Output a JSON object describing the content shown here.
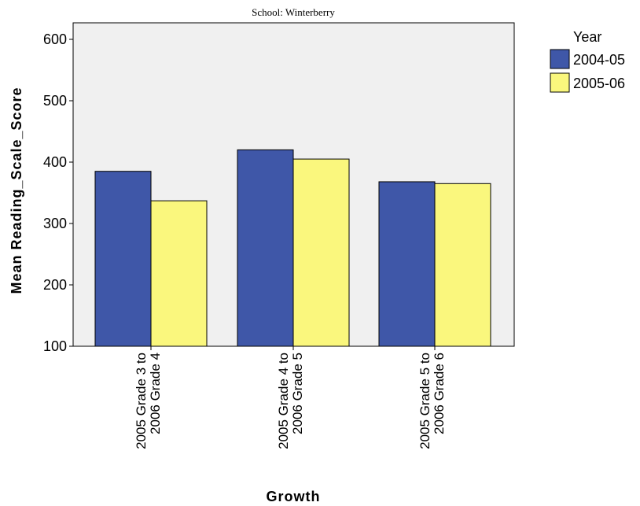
{
  "chart_data": {
    "type": "bar",
    "title": "School: Winterberry",
    "xlabel": "Growth",
    "ylabel": "Mean Reading_Scale_Score",
    "ylim": [
      100,
      620
    ],
    "yticks": [
      100,
      200,
      300,
      400,
      500,
      600
    ],
    "categories": [
      [
        "2005 Grade 3 to",
        "2006 Grade 4"
      ],
      [
        "2005 Grade 4 to",
        "2006 Grade 5"
      ],
      [
        "2005 Grade 5 to",
        "2006 Grade 6"
      ]
    ],
    "series": [
      {
        "name": "2004-05",
        "color": "#3f57a8",
        "values": [
          385,
          420,
          368
        ]
      },
      {
        "name": "2005-06",
        "color": "#faf77d",
        "values": [
          337,
          405,
          365
        ]
      }
    ],
    "legend": {
      "title": "Year",
      "position": "right"
    },
    "plot_background": "#f0f0f0",
    "grid": false
  }
}
